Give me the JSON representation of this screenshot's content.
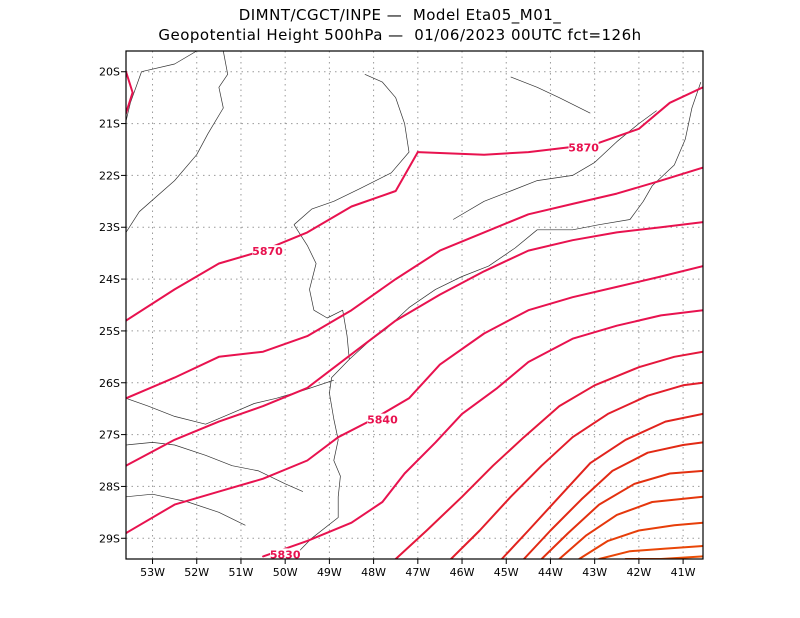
{
  "title_line1": "DIMNT/CGCT/INPE —  Model Eta05_M01_",
  "title_line2": "Geopotential Height 500hPa —  01/06/2023 00UTC fct=126h",
  "map": {
    "lon_range": [
      -53.6,
      -40.55
    ],
    "lat_range": [
      -29.4,
      -19.6
    ],
    "grid": "dotted",
    "lon_ticks": [
      {
        "value": -53,
        "label": "53W"
      },
      {
        "value": -52,
        "label": "52W"
      },
      {
        "value": -51,
        "label": "51W"
      },
      {
        "value": -50,
        "label": "50W"
      },
      {
        "value": -49,
        "label": "49W"
      },
      {
        "value": -48,
        "label": "48W"
      },
      {
        "value": -47,
        "label": "47W"
      },
      {
        "value": -46,
        "label": "46W"
      },
      {
        "value": -45,
        "label": "45W"
      },
      {
        "value": -44,
        "label": "44W"
      },
      {
        "value": -43,
        "label": "43W"
      },
      {
        "value": -42,
        "label": "42W"
      },
      {
        "value": -41,
        "label": "41W"
      }
    ],
    "lat_ticks": [
      {
        "value": -20,
        "label": "20S"
      },
      {
        "value": -21,
        "label": "21S"
      },
      {
        "value": -22,
        "label": "22S"
      },
      {
        "value": -23,
        "label": "23S"
      },
      {
        "value": -24,
        "label": "24S"
      },
      {
        "value": -25,
        "label": "25S"
      },
      {
        "value": -26,
        "label": "26S"
      },
      {
        "value": -27,
        "label": "27S"
      },
      {
        "value": -28,
        "label": "28S"
      },
      {
        "value": -29,
        "label": "29S"
      }
    ]
  },
  "contour_labels": [
    {
      "text": "5870",
      "lon": -43.25,
      "lat": -21.5
    },
    {
      "text": "5870",
      "lon": -50.4,
      "lat": -23.5
    },
    {
      "text": "5840",
      "lon": -47.8,
      "lat": -26.75
    },
    {
      "text": "5830",
      "lon": -50.0,
      "lat": -29.35
    }
  ],
  "contours": [
    {
      "color": "#e8124f",
      "points": [
        [
          -53.6,
          -20.0
        ],
        [
          -53.45,
          -20.4
        ],
        [
          -53.6,
          -20.8
        ]
      ]
    },
    {
      "color": "#e8124f",
      "points": [
        [
          -47.0,
          -21.55
        ],
        [
          -45.5,
          -21.6
        ],
        [
          -44.5,
          -21.55
        ],
        [
          -43.0,
          -21.4
        ],
        [
          -42.0,
          -21.1
        ],
        [
          -41.3,
          -20.6
        ],
        [
          -40.55,
          -20.3
        ]
      ]
    },
    {
      "color": "#e8124f",
      "points": [
        [
          -53.6,
          -24.8
        ],
        [
          -52.5,
          -24.2
        ],
        [
          -51.5,
          -23.7
        ],
        [
          -50.5,
          -23.45
        ],
        [
          -49.5,
          -23.1
        ],
        [
          -48.5,
          -22.6
        ],
        [
          -47.5,
          -22.3
        ],
        [
          -47.0,
          -21.55
        ]
      ]
    },
    {
      "color": "#e8124f",
      "points": [
        [
          -53.6,
          -26.3
        ],
        [
          -52.5,
          -25.9
        ],
        [
          -51.5,
          -25.5
        ],
        [
          -50.5,
          -25.4
        ],
        [
          -49.5,
          -25.1
        ],
        [
          -48.5,
          -24.6
        ],
        [
          -47.5,
          -24.0
        ],
        [
          -46.5,
          -23.45
        ],
        [
          -45.5,
          -23.1
        ],
        [
          -44.5,
          -22.75
        ],
        [
          -43.5,
          -22.55
        ],
        [
          -42.5,
          -22.35
        ],
        [
          -41.5,
          -22.1
        ],
        [
          -40.55,
          -21.85
        ]
      ]
    },
    {
      "color": "#e8124f",
      "points": [
        [
          -53.6,
          -27.6
        ],
        [
          -52.5,
          -27.1
        ],
        [
          -51.5,
          -26.75
        ],
        [
          -50.5,
          -26.45
        ],
        [
          -49.5,
          -26.1
        ],
        [
          -48.5,
          -25.45
        ],
        [
          -47.5,
          -24.8
        ],
        [
          -46.5,
          -24.3
        ],
        [
          -45.5,
          -23.85
        ],
        [
          -44.5,
          -23.45
        ],
        [
          -43.5,
          -23.25
        ],
        [
          -42.5,
          -23.1
        ],
        [
          -41.5,
          -23.0
        ],
        [
          -40.55,
          -22.9
        ]
      ]
    },
    {
      "color": "#e8124f",
      "points": [
        [
          -53.6,
          -28.9
        ],
        [
          -52.5,
          -28.35
        ],
        [
          -51.5,
          -28.1
        ],
        [
          -50.5,
          -27.85
        ],
        [
          -49.5,
          -27.5
        ],
        [
          -48.8,
          -27.05
        ],
        [
          -48.0,
          -26.7
        ],
        [
          -47.2,
          -26.3
        ],
        [
          -46.5,
          -25.65
        ],
        [
          -45.5,
          -25.05
        ],
        [
          -44.5,
          -24.6
        ],
        [
          -43.5,
          -24.35
        ],
        [
          -42.5,
          -24.15
        ],
        [
          -41.5,
          -23.95
        ],
        [
          -40.55,
          -23.75
        ]
      ]
    },
    {
      "color": "#e8124f",
      "points": [
        [
          -50.5,
          -29.35
        ],
        [
          -49.5,
          -29.05
        ],
        [
          -48.5,
          -28.7
        ],
        [
          -47.8,
          -28.3
        ],
        [
          -47.3,
          -27.75
        ],
        [
          -46.6,
          -27.15
        ],
        [
          -46.0,
          -26.6
        ],
        [
          -45.2,
          -26.1
        ],
        [
          -44.5,
          -25.6
        ],
        [
          -43.5,
          -25.15
        ],
        [
          -42.5,
          -24.9
        ],
        [
          -41.5,
          -24.7
        ],
        [
          -40.55,
          -24.6
        ]
      ]
    },
    {
      "color": "#e5173c",
      "points": [
        [
          -47.5,
          -29.4
        ],
        [
          -46.8,
          -28.85
        ],
        [
          -46.0,
          -28.2
        ],
        [
          -45.3,
          -27.6
        ],
        [
          -44.6,
          -27.05
        ],
        [
          -43.8,
          -26.45
        ],
        [
          -43.0,
          -26.05
        ],
        [
          -42.0,
          -25.7
        ],
        [
          -41.2,
          -25.5
        ],
        [
          -40.55,
          -25.4
        ]
      ]
    },
    {
      "color": "#e31d2a",
      "points": [
        [
          -46.25,
          -29.4
        ],
        [
          -45.6,
          -28.85
        ],
        [
          -44.9,
          -28.2
        ],
        [
          -44.2,
          -27.6
        ],
        [
          -43.5,
          -27.05
        ],
        [
          -42.7,
          -26.6
        ],
        [
          -41.8,
          -26.25
        ],
        [
          -41.0,
          -26.05
        ],
        [
          -40.55,
          -26.0
        ]
      ]
    },
    {
      "color": "#e1231d",
      "points": [
        [
          -45.1,
          -29.4
        ],
        [
          -44.5,
          -28.85
        ],
        [
          -43.8,
          -28.2
        ],
        [
          -43.1,
          -27.55
        ],
        [
          -42.3,
          -27.1
        ],
        [
          -41.4,
          -26.75
        ],
        [
          -40.55,
          -26.6
        ]
      ]
    },
    {
      "color": "#e22a14",
      "points": [
        [
          -44.6,
          -29.4
        ],
        [
          -44.0,
          -28.85
        ],
        [
          -43.3,
          -28.25
        ],
        [
          -42.6,
          -27.7
        ],
        [
          -41.8,
          -27.35
        ],
        [
          -41.0,
          -27.2
        ],
        [
          -40.55,
          -27.15
        ]
      ]
    },
    {
      "color": "#e3300f",
      "points": [
        [
          -44.2,
          -29.4
        ],
        [
          -43.6,
          -28.9
        ],
        [
          -42.9,
          -28.35
        ],
        [
          -42.1,
          -27.95
        ],
        [
          -41.3,
          -27.75
        ],
        [
          -40.55,
          -27.7
        ]
      ]
    },
    {
      "color": "#e5370c",
      "points": [
        [
          -43.8,
          -29.4
        ],
        [
          -43.2,
          -28.95
        ],
        [
          -42.5,
          -28.55
        ],
        [
          -41.7,
          -28.3
        ],
        [
          -40.55,
          -28.2
        ]
      ]
    },
    {
      "color": "#e73e09",
      "points": [
        [
          -43.35,
          -29.4
        ],
        [
          -42.7,
          -29.05
        ],
        [
          -42.0,
          -28.85
        ],
        [
          -41.2,
          -28.75
        ],
        [
          -40.55,
          -28.7
        ]
      ]
    },
    {
      "color": "#e94607",
      "points": [
        [
          -42.9,
          -29.4
        ],
        [
          -42.2,
          -29.25
        ],
        [
          -41.4,
          -29.2
        ],
        [
          -40.55,
          -29.15
        ]
      ]
    },
    {
      "color": "#eb4e05",
      "points": [
        [
          -42.3,
          -29.4
        ],
        [
          -41.5,
          -29.4
        ],
        [
          -40.55,
          -29.35
        ]
      ]
    }
  ],
  "coastline": [
    [
      [
        -53.6,
        -20.95
      ],
      [
        -53.5,
        -20.6
      ],
      [
        -53.25,
        -20.0
      ],
      [
        -52.5,
        -19.85
      ],
      [
        -52.0,
        -19.6
      ]
    ],
    [
      [
        -51.4,
        -19.6
      ],
      [
        -51.3,
        -20.05
      ],
      [
        -51.5,
        -20.3
      ],
      [
        -51.4,
        -20.7
      ],
      [
        -51.75,
        -21.2
      ],
      [
        -52.0,
        -21.6
      ],
      [
        -52.5,
        -22.1
      ],
      [
        -53.3,
        -22.7
      ],
      [
        -53.6,
        -23.1
      ]
    ],
    [
      [
        -49.8,
        -22.95
      ],
      [
        -49.5,
        -23.35
      ],
      [
        -49.3,
        -23.7
      ],
      [
        -49.45,
        -24.2
      ],
      [
        -49.35,
        -24.6
      ],
      [
        -49.05,
        -24.75
      ],
      [
        -48.7,
        -24.6
      ],
      [
        -48.6,
        -25.1
      ],
      [
        -48.55,
        -25.55
      ],
      [
        -48.95,
        -25.9
      ],
      [
        -49.0,
        -26.2
      ],
      [
        -48.9,
        -26.7
      ],
      [
        -48.8,
        -27.1
      ],
      [
        -48.9,
        -27.5
      ],
      [
        -48.75,
        -27.8
      ],
      [
        -48.8,
        -28.2
      ],
      [
        -48.8,
        -28.6
      ],
      [
        -49.4,
        -29.0
      ],
      [
        -49.8,
        -29.35
      ]
    ],
    [
      [
        -48.55,
        -25.55
      ],
      [
        -48.1,
        -25.2
      ],
      [
        -47.7,
        -24.95
      ],
      [
        -47.2,
        -24.55
      ],
      [
        -46.6,
        -24.2
      ],
      [
        -46.0,
        -23.95
      ],
      [
        -45.4,
        -23.75
      ],
      [
        -44.8,
        -23.4
      ],
      [
        -44.3,
        -23.05
      ],
      [
        -43.5,
        -23.05
      ],
      [
        -42.9,
        -22.95
      ],
      [
        -42.2,
        -22.85
      ],
      [
        -41.9,
        -22.5
      ],
      [
        -41.7,
        -22.2
      ],
      [
        -41.2,
        -21.8
      ],
      [
        -40.95,
        -21.3
      ],
      [
        -40.8,
        -20.7
      ],
      [
        -40.6,
        -20.2
      ]
    ],
    [
      [
        -53.6,
        -27.2
      ],
      [
        -53.0,
        -27.15
      ],
      [
        -52.5,
        -27.2
      ],
      [
        -51.8,
        -27.4
      ],
      [
        -51.2,
        -27.6
      ],
      [
        -50.6,
        -27.7
      ],
      [
        -50.0,
        -27.95
      ],
      [
        -49.6,
        -28.1
      ]
    ],
    [
      [
        -53.6,
        -26.3
      ],
      [
        -53.1,
        -26.45
      ],
      [
        -52.5,
        -26.65
      ],
      [
        -51.8,
        -26.8
      ],
      [
        -51.25,
        -26.6
      ],
      [
        -50.7,
        -26.4
      ],
      [
        -50.2,
        -26.3
      ],
      [
        -49.6,
        -26.15
      ],
      [
        -48.9,
        -25.95
      ]
    ],
    [
      [
        -49.8,
        -22.95
      ],
      [
        -49.4,
        -22.65
      ],
      [
        -48.9,
        -22.5
      ],
      [
        -48.3,
        -22.25
      ],
      [
        -47.6,
        -21.95
      ],
      [
        -47.2,
        -21.55
      ],
      [
        -47.3,
        -21.0
      ],
      [
        -47.5,
        -20.5
      ],
      [
        -47.8,
        -20.2
      ],
      [
        -48.2,
        -20.05
      ]
    ],
    [
      [
        -46.2,
        -22.85
      ],
      [
        -45.5,
        -22.5
      ],
      [
        -44.9,
        -22.3
      ],
      [
        -44.3,
        -22.1
      ],
      [
        -43.5,
        -22.0
      ],
      [
        -43.0,
        -21.75
      ],
      [
        -42.5,
        -21.35
      ],
      [
        -42.0,
        -21.0
      ],
      [
        -41.6,
        -20.75
      ]
    ],
    [
      [
        -44.9,
        -20.1
      ],
      [
        -44.3,
        -20.3
      ],
      [
        -43.8,
        -20.5
      ],
      [
        -43.1,
        -20.8
      ]
    ],
    [
      [
        -53.6,
        -28.2
      ],
      [
        -53.0,
        -28.15
      ],
      [
        -52.2,
        -28.3
      ],
      [
        -51.5,
        -28.5
      ],
      [
        -50.9,
        -28.75
      ]
    ]
  ]
}
